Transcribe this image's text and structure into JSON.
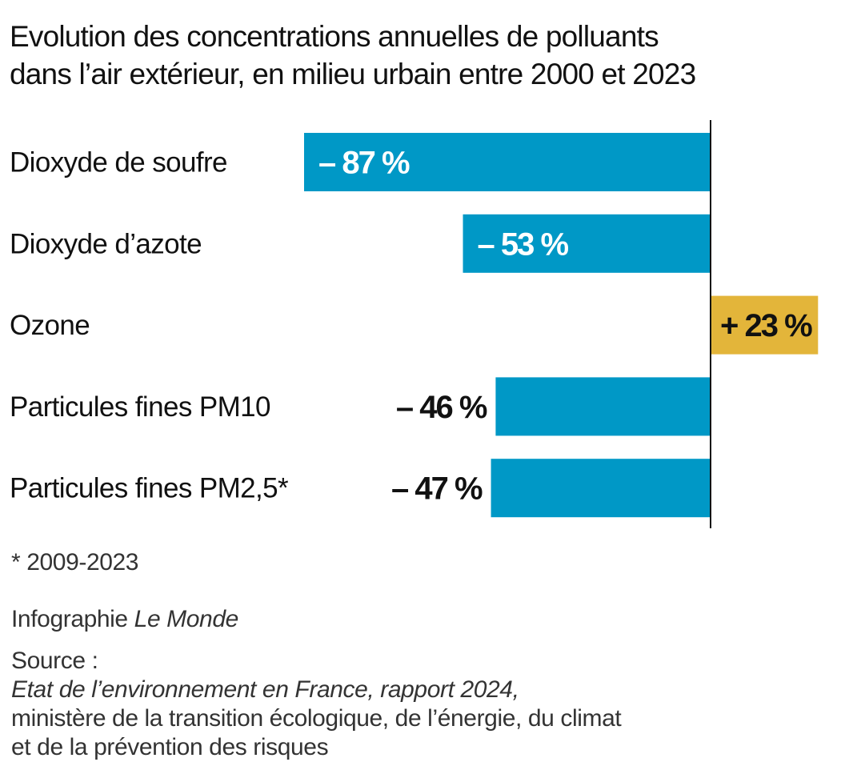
{
  "chart_data": {
    "type": "bar",
    "orientation": "horizontal",
    "title": "Evolution des concentrations annuelles de polluants dans l’air extérieur, en milieu urbain entre 2000 et 2023",
    "title_lines": [
      "Evolution des concentrations annuelles de polluants",
      "dans l’air extérieur, en milieu urbain entre 2000 et 2023"
    ],
    "categories": [
      "Dioxyde de soufre",
      "Dioxyde d’azote",
      "Ozone",
      "Particules fines PM10",
      "Particules fines PM2,5*"
    ],
    "values": [
      -87,
      -53,
      23,
      -46,
      -47
    ],
    "value_labels": [
      "– 87 %",
      "– 53 %",
      "+ 23 %",
      "– 46 %",
      "– 47 %"
    ],
    "xlim": [
      -87,
      23
    ],
    "unit": "%",
    "colors": {
      "negative": "#0098c6",
      "positive": "#e3b53a",
      "axis": "#111111",
      "label_inside": "#ffffff",
      "label_outside": "#111111"
    },
    "grid": false,
    "legend": "none"
  },
  "footnote": "* 2009-2023",
  "credit": {
    "prefix": "Infographie ",
    "name": "Le Monde"
  },
  "source": {
    "prefix": "Source : ",
    "title": "Etat de l’environnement en France, rapport 2024,",
    "line2": "ministère de la transition écologique, de l’énergie, du climat",
    "line3": "et de la prévention des risques"
  }
}
